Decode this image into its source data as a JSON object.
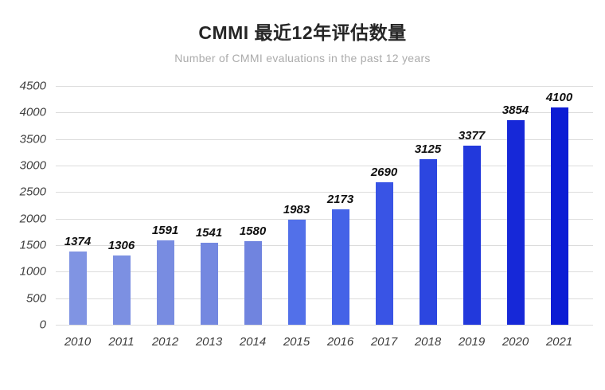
{
  "header": {
    "title": "CMMI 最近12年评估数量",
    "subtitle": "Number of CMMI evaluations in the past 12 years"
  },
  "chart_data": {
    "type": "bar",
    "title": "CMMI 最近12年评估数量",
    "subtitle": "Number of CMMI evaluations in the past 12 years",
    "categories": [
      "2010",
      "2011",
      "2012",
      "2013",
      "2014",
      "2015",
      "2016",
      "2017",
      "2018",
      "2019",
      "2020",
      "2021"
    ],
    "values": [
      1374,
      1306,
      1591,
      1541,
      1580,
      1983,
      2173,
      2690,
      3125,
      3377,
      3854,
      4100
    ],
    "xlabel": "",
    "ylabel": "",
    "ylim": [
      0,
      4500
    ],
    "yticks": [
      0,
      500,
      1000,
      1500,
      2000,
      2500,
      3000,
      3500,
      4000,
      4500
    ],
    "grid": "horizontal",
    "legend": "none",
    "data_labels": true,
    "bar_colors": [
      "#8094e3",
      "#7c90e2",
      "#788ce1",
      "#7488e0",
      "#7084df",
      "#5270e9",
      "#4463e7",
      "#3954e5",
      "#2c46e0",
      "#2239dc",
      "#1628d8",
      "#0c1cd4"
    ],
    "grid_color": "#dcdcdc",
    "tick_label_color": "#3f3f3f",
    "data_label_color": "#0f0f0f",
    "title_color": "#252525",
    "subtitle_color": "#ababab"
  }
}
